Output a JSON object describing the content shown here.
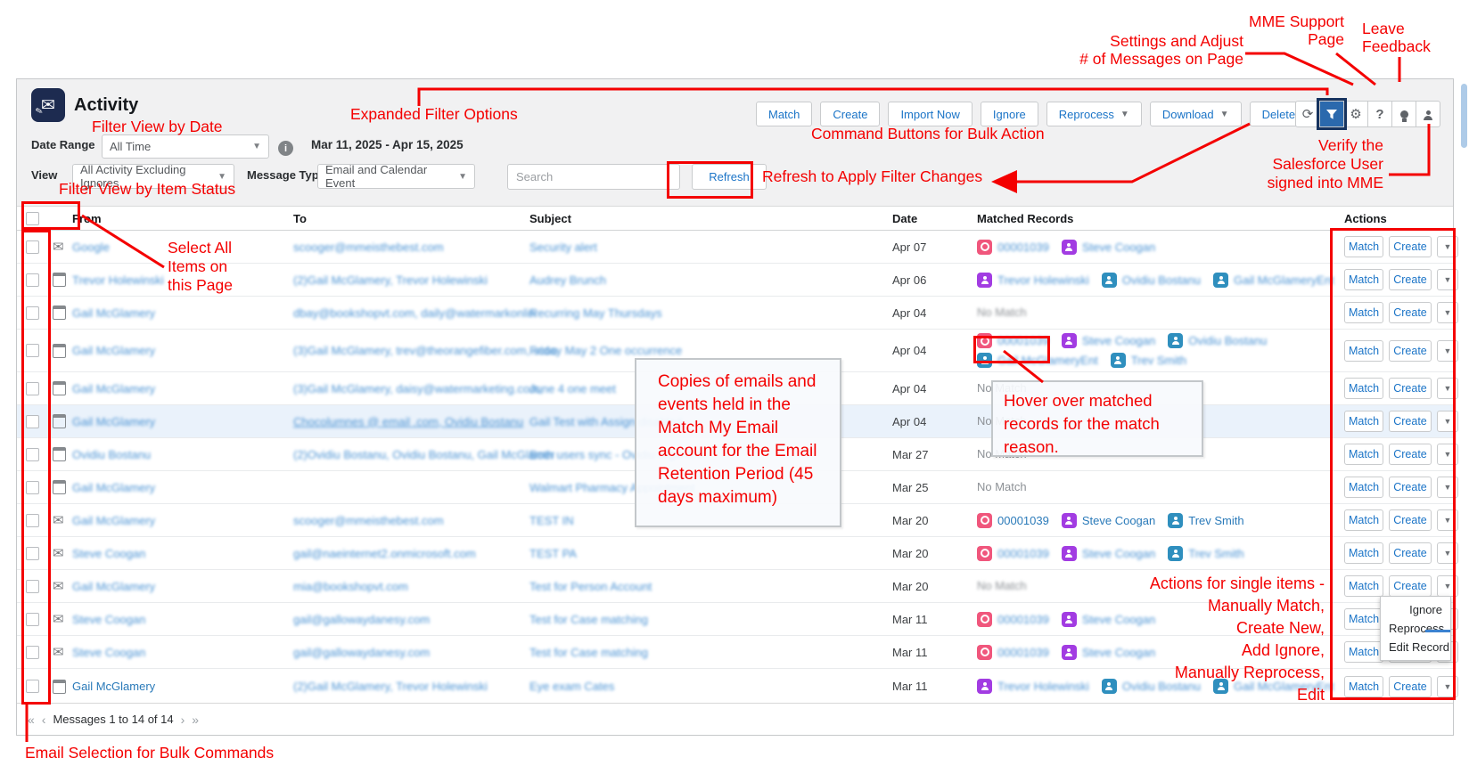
{
  "header": {
    "title": "Activity"
  },
  "toolbar": {
    "buttons": [
      {
        "label": "Match",
        "dropdown": false
      },
      {
        "label": "Create",
        "dropdown": false
      },
      {
        "label": "Import Now",
        "dropdown": false
      },
      {
        "label": "Ignore",
        "dropdown": false
      },
      {
        "label": "Reprocess",
        "dropdown": true
      },
      {
        "label": "Download",
        "dropdown": true
      },
      {
        "label": "Delete",
        "dropdown": true
      }
    ],
    "icons": [
      "refresh-icon",
      "filter-icon",
      "settings-gear-icon",
      "help-icon",
      "feedback-bulb-icon",
      "user-icon"
    ]
  },
  "filters": {
    "date_range_label": "Date Range",
    "date_range_value": "All Time",
    "date_range_text": "Mar 11, 2025 - Apr 15, 2025",
    "view_label": "View",
    "view_value": "All Activity Excluding Ignores",
    "message_type_label": "Message Type",
    "message_type_value": "Email and Calendar Event",
    "search_placeholder": "Search",
    "refresh_label": "Refresh"
  },
  "table": {
    "columns": [
      "From",
      "To",
      "Subject",
      "Date",
      "Matched Records",
      "Actions"
    ],
    "action_match": "Match",
    "action_create": "Create",
    "no_match_label": "No Match",
    "rows": [
      {
        "type": "email",
        "from": "Google",
        "to": "scooger@mmeisthebest.com",
        "subject": "Security alert",
        "date": "Apr 07",
        "matched": [
          {
            "kind": "case",
            "label": "00001039"
          },
          {
            "kind": "contact",
            "label": "Steve Coogan"
          }
        ],
        "blur": true,
        "matched_blur": true
      },
      {
        "type": "event",
        "from": "Trevor Holewinski",
        "to": "(2)Gail McGlamery, Trevor Holewinski",
        "subject": "Audrey Brunch",
        "date": "Apr 06",
        "matched": [
          {
            "kind": "contact",
            "label": "Trevor Holewinski"
          },
          {
            "kind": "account",
            "label": "Ovidiu Bostanu"
          },
          {
            "kind": "account",
            "label": "Gail McGlameryEnt"
          }
        ],
        "blur": true,
        "matched_blur": true
      },
      {
        "type": "event",
        "from": "Gail McGlamery",
        "to": "dbay@bookshopvt.com, daily@watermarkonlin",
        "subject": "Recurring May Thursdays",
        "date": "Apr 04",
        "no_match": true,
        "no_match_blur": true,
        "blur": true
      },
      {
        "type": "event",
        "from": "Gail McGlamery",
        "to": "(3)Gail McGlamery, trev@theorangefiber.com, scoo",
        "subject": "Friday May 2 One occurrence",
        "date": "Apr 04",
        "matched": [
          {
            "kind": "case",
            "label": "00001039"
          },
          {
            "kind": "contact",
            "label": "Steve Coogan"
          },
          {
            "kind": "account",
            "label": "Ovidiu Bostanu"
          }
        ],
        "matched_line2": [
          {
            "kind": "account",
            "label": "Gail McGlameryEnt"
          },
          {
            "kind": "account",
            "label": "Trev Smith"
          }
        ],
        "blur": true,
        "matched_blur": true
      },
      {
        "type": "event",
        "from": "Gail McGlamery",
        "to": "(3)Gail McGlamery, daisy@watermarketing.com,",
        "subject": "June 4 one meet",
        "date": "Apr 04",
        "no_match": true,
        "blur": true
      },
      {
        "type": "event",
        "from": "Gail McGlamery",
        "to": "Chocolumnes @ email .com, Ovidiu Bostanu",
        "subject": "Gail Test with Assign disabled",
        "date": "Apr 04",
        "no_match": true,
        "blur": true,
        "highlight": true,
        "to_underline": true
      },
      {
        "type": "event",
        "from": "Ovidiu Bostanu",
        "to": "(2)Ovidiu Bostanu, Ovidiu Bostanu, Gail McGlamer",
        "subject": "Both users sync - Ovidiu organizer",
        "date": "Mar 27",
        "no_match": true,
        "blur": true
      },
      {
        "type": "event",
        "from": "Gail McGlamery",
        "to": "",
        "subject": "Walmart Pharmacy Appointment",
        "date": "Mar 25",
        "no_match": true,
        "blur": true
      },
      {
        "type": "email",
        "from": "Gail McGlamery",
        "to": "scooger@mmeisthebest.com",
        "subject": "TEST IN",
        "date": "Mar 20",
        "matched": [
          {
            "kind": "case",
            "label": "00001039"
          },
          {
            "kind": "contact",
            "label": "Steve Coogan"
          },
          {
            "kind": "account",
            "label": "Trev Smith"
          }
        ],
        "blur": true,
        "matched_blur": false
      },
      {
        "type": "email",
        "from": "Steve Coogan",
        "to": "gail@naeinternet2.onmicrosoft.com",
        "subject": "TEST PA",
        "date": "Mar 20",
        "matched": [
          {
            "kind": "case",
            "label": "00001039"
          },
          {
            "kind": "contact",
            "label": "Steve Coogan"
          },
          {
            "kind": "account",
            "label": "Trev Smith"
          }
        ],
        "blur": true,
        "matched_blur": true
      },
      {
        "type": "email",
        "from": "Gail McGlamery",
        "to": "mia@bookshopvt.com",
        "subject": "Test for Person Account",
        "date": "Mar 20",
        "no_match": true,
        "no_match_blur": true,
        "blur": true
      },
      {
        "type": "email",
        "from": "Steve Coogan",
        "to": "gail@gallowaydanesy.com",
        "subject": "Test for Case matching",
        "date": "Mar 11",
        "matched": [
          {
            "kind": "case",
            "label": "00001039"
          },
          {
            "kind": "contact",
            "label": "Steve Coogan"
          }
        ],
        "blur": true,
        "matched_blur": true,
        "menu_open": true
      },
      {
        "type": "email",
        "from": "Steve Coogan",
        "to": "gail@gallowaydanesy.com",
        "subject": "Test for Case matching",
        "date": "Mar 11",
        "matched": [
          {
            "kind": "case",
            "label": "00001039"
          },
          {
            "kind": "contact",
            "label": "Steve Coogan"
          }
        ],
        "blur": true,
        "matched_blur": true
      },
      {
        "type": "event",
        "from": "Gail McGlamery",
        "to": "(2)Gail McGlamery, Trevor Holewinski",
        "subject": "Eye exam Cates",
        "date": "Mar 11",
        "matched": [
          {
            "kind": "contact",
            "label": "Trevor Holewinski"
          },
          {
            "kind": "account",
            "label": "Ovidiu Bostanu"
          },
          {
            "kind": "account",
            "label": "Gail McGlameryEnt"
          }
        ],
        "blur": true,
        "from_sharp": true,
        "matched_blur": true
      }
    ]
  },
  "row_menu": {
    "items": [
      "Ignore",
      "Reprocess",
      "Edit Record"
    ]
  },
  "pagination": {
    "first": "«",
    "prev": "‹",
    "text": "Messages 1 to 14 of 14",
    "next": "›",
    "last": "»"
  },
  "annotations": {
    "filter_view_by_date": "Filter View by Date",
    "expanded_filter_options": "Expanded Filter Options",
    "command_buttons": "Command Buttons for Bulk Action",
    "settings_note": [
      "Settings and Adjust",
      "# of Messages on Page"
    ],
    "mme_support_note": [
      "MME Support",
      "Page"
    ],
    "leave_feedback_note": [
      "Leave",
      "Feedback"
    ],
    "refresh_apply": "Refresh to Apply Filter Changes",
    "verify_note": [
      "Verify the",
      "Salesforce User",
      "signed into MME"
    ],
    "filter_item_status": "Filter View by Item Status",
    "select_all_note": [
      "Select All",
      "Items on",
      "this Page"
    ],
    "retention_note": [
      "Copies of emails and",
      "events held in the",
      "Match My Email",
      "account for the Email",
      "Retention Period (45",
      "days maximum)"
    ],
    "hover_note": [
      "Hover over matched",
      "records for the match",
      "reason."
    ],
    "actions_note": [
      "Actions for single items -",
      "Manually Match,",
      "Create New,",
      "Add Ignore,",
      "Manually Reprocess,",
      "Edit"
    ],
    "email_selection": "Email Selection for Bulk Commands"
  },
  "colors": {
    "annotation_red": "#f40000",
    "link_blue": "#1b74c7",
    "badge_case": "#f0567c",
    "badge_contact": "#a23ce2",
    "badge_account": "#2f8fbe",
    "filter_selected_bg": "#2b69ad",
    "filter_selected_border": "#16335f"
  }
}
